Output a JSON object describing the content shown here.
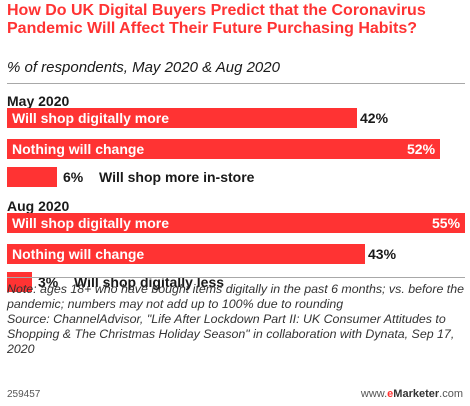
{
  "header": {
    "title": "How Do UK Digital Buyers Predict that the Coronavirus Pandemic Will Affect Their Future Purchasing Habits?",
    "subtitle": "% of respondents, May 2020 & Aug 2020"
  },
  "colors": {
    "bar": "#ff3333",
    "title": "#ff3333"
  },
  "chart_data": {
    "type": "bar",
    "orientation": "horizontal",
    "unit": "%",
    "xlim": [
      0,
      55
    ],
    "grid": false,
    "groups": [
      {
        "name": "May 2020",
        "items": [
          {
            "label": "Will shop digitally more",
            "value": 42,
            "display": "42%"
          },
          {
            "label": "Nothing will change",
            "value": 52,
            "display": "52%"
          },
          {
            "label": "Will shop more in-store",
            "value": 6,
            "display": "6%"
          }
        ]
      },
      {
        "name": "Aug 2020",
        "items": [
          {
            "label": "Will shop digitally more",
            "value": 55,
            "display": "55%"
          },
          {
            "label": "Nothing will change",
            "value": 43,
            "display": "43%"
          },
          {
            "label": "Will shop digitally less",
            "value": 3,
            "display": "3%"
          }
        ]
      }
    ]
  },
  "footer": {
    "note": "Note: ages 18+ who have bought items digitally in the past 6 months; vs. before the pandemic; numbers may not add up to 100% due to rounding",
    "source": "Source: ChannelAdvisor, \"Life After Lockdown Part II: UK Consumer Attitudes to Shopping & The Christmas Holiday Season\" in collaboration with Dynata, Sep 17, 2020",
    "chart_id": "259457",
    "brand_www": "www.",
    "brand_e": "e",
    "brand_marketer": "Marketer",
    "brand_dotcom": ".com"
  }
}
